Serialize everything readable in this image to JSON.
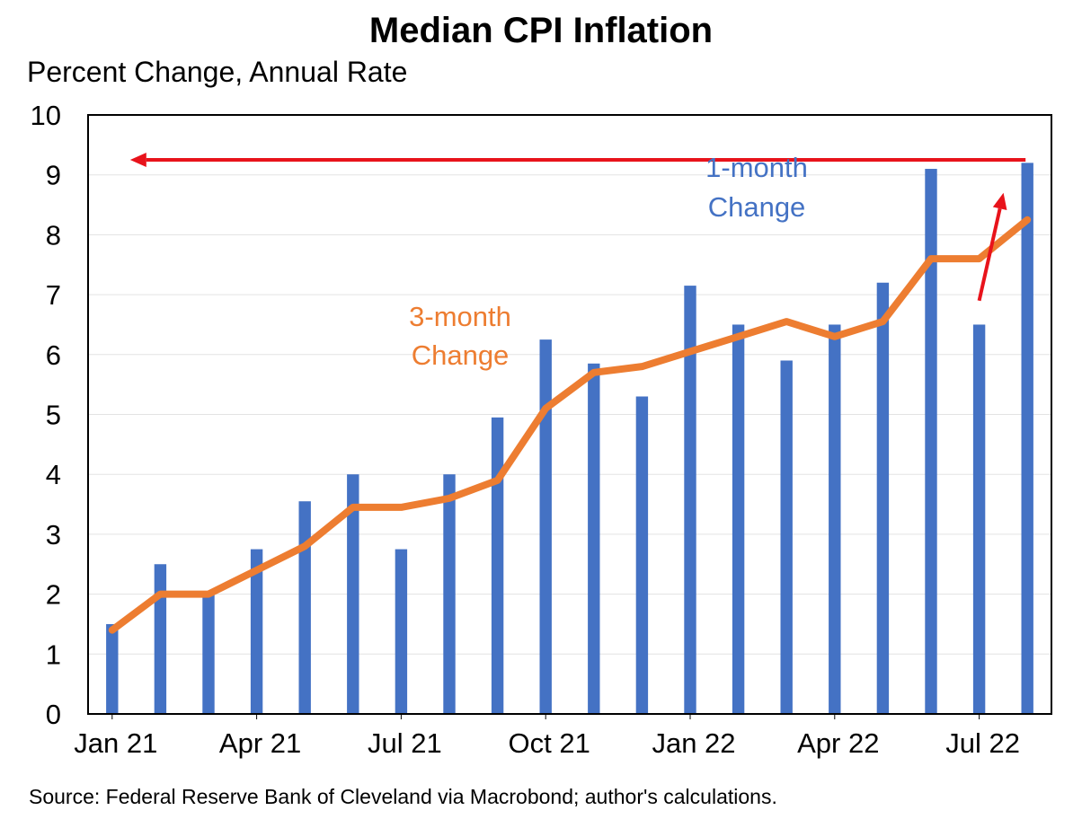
{
  "header": {
    "title": "Median CPI Inflation",
    "subtitle": "Percent Change, Annual Rate"
  },
  "footer": {
    "source": "Source: Federal Reserve Bank of Cleveland via Macrobond; author's calculations."
  },
  "colors": {
    "bars": "#4472C4",
    "line": "#ED7D31",
    "arrows": "#E8131B",
    "label_3month": "#ED7D31",
    "label_1month": "#4472C4"
  },
  "chart_data": {
    "type": "bar",
    "categories": [
      "Jan 21",
      "Feb 21",
      "Mar 21",
      "Apr 21",
      "May 21",
      "Jun 21",
      "Jul 21",
      "Aug 21",
      "Sep 21",
      "Oct 21",
      "Nov 21",
      "Dec 21",
      "Jan 22",
      "Feb 22",
      "Mar 22",
      "Apr 22",
      "May 22",
      "Jun 22",
      "Jul 22",
      "Aug 22"
    ],
    "tick_labels": [
      "Jan 21",
      "Apr 21",
      "Jul 21",
      "Oct 21",
      "Jan 22",
      "Apr 22",
      "Jul 22"
    ],
    "ylim": [
      0,
      10
    ],
    "yticks": [
      0,
      1,
      2,
      3,
      4,
      5,
      6,
      7,
      8,
      9,
      10
    ],
    "series": [
      {
        "name": "1-month Change",
        "kind": "bar",
        "values": [
          1.5,
          2.5,
          2.0,
          2.75,
          3.55,
          4.0,
          2.75,
          4.0,
          4.95,
          6.25,
          5.85,
          5.3,
          7.15,
          6.5,
          5.9,
          6.5,
          7.2,
          9.1,
          6.5,
          9.2
        ]
      },
      {
        "name": "3-month Change",
        "kind": "line",
        "values": [
          1.4,
          2.0,
          2.0,
          2.4,
          2.8,
          3.45,
          3.45,
          3.6,
          3.9,
          5.1,
          5.7,
          5.8,
          6.05,
          6.3,
          6.55,
          6.3,
          6.55,
          7.6,
          7.6,
          8.25
        ]
      }
    ],
    "annotations": [
      {
        "text": "3-month",
        "text2": "Change",
        "series": "3-month Change"
      },
      {
        "text": "1-month",
        "text2": "Change",
        "series": "1-month Change"
      }
    ],
    "arrows": [
      {
        "from": {
          "x": "Aug 22",
          "y": 9.25
        },
        "to": {
          "x": "Jan 21",
          "y": 9.25
        }
      },
      {
        "from": {
          "x": "Jul 22",
          "y": 6.9
        },
        "to": {
          "x": "Aug 22",
          "y": 8.7
        }
      }
    ],
    "grid": true,
    "legend": "none"
  }
}
